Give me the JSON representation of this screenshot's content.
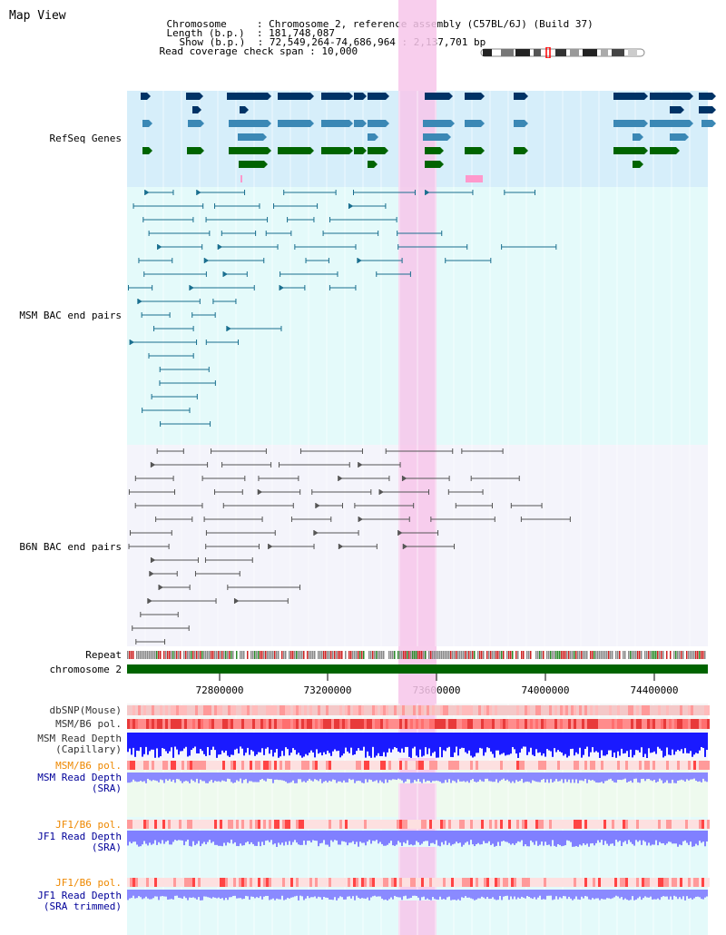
{
  "title": "Map View",
  "header": {
    "chromosome_key": "Chromosome",
    "chromosome_val": "Chromosome 2, reference assembly (C57BL/6J) (Build 37)",
    "length_key": "Length (b.p.)",
    "length_val": "181,748,087",
    "show_key": "Show (b.p.)",
    "show_val": "72,549,264-74,686,964 : 2,137,701 bp",
    "coverage_key": "Read coverage check span",
    "coverage_val": "10,000"
  },
  "tracks": {
    "refseq": {
      "label": "RefSeq Genes",
      "color": "#0000cc"
    },
    "msm_bac": {
      "label": "MSM BAC end pairs",
      "color": "#006699"
    },
    "b6n_bac": {
      "label": "B6N BAC end pairs",
      "color": "#555555"
    },
    "repeat": {
      "label": "Repeat"
    },
    "chrom": {
      "label": "chromosome 2"
    },
    "dbsnp": {
      "label": "dbSNP(Mouse)"
    },
    "msm_b6_pol_1": {
      "label": "MSM/B6 pol."
    },
    "msm_depth_cap": {
      "line1": "MSM Read Depth",
      "line2": "(Capillary)"
    },
    "msm_b6_pol_2": {
      "label": "MSM/B6 pol."
    },
    "msm_depth_sra": {
      "line1": "MSM Read Depth",
      "line2": "(SRA)"
    },
    "jf1_b6_pol_1": {
      "label": "JF1/B6 pol."
    },
    "jf1_depth_sra": {
      "line1": "JF1 Read Depth",
      "line2": "(SRA)"
    },
    "jf1_b6_pol_2": {
      "label": "JF1/B6 pol."
    },
    "jf1_depth_trim": {
      "line1": "JF1 Read Depth",
      "line2": "(SRA trimmed)"
    }
  },
  "axis": {
    "ticks": [
      "72800000",
      "73200000",
      "73600000",
      "74000000",
      "74400000"
    ]
  },
  "colors": {
    "refseq_bg": "#d6eefa",
    "msm_bg": "#e4fafa",
    "b6n_bg": "#f4f4fb",
    "highlight": "#f7c6ea",
    "gene_dark": "#003366",
    "gene_mid": "#3b88b5",
    "gene_green": "#006400",
    "chrom_green": "#006400",
    "orange_label": "#ee8800",
    "dark_blue_label": "#000099"
  }
}
